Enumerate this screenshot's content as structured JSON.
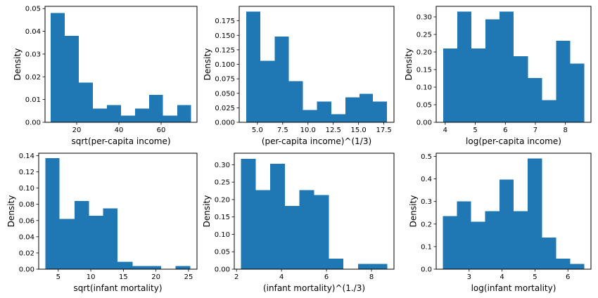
{
  "chart_data": [
    {
      "type": "histogram",
      "xlabel": "sqrt(per-capita income)",
      "ylabel": "Density",
      "color": "#1f77b4",
      "bin_edges": [
        7.7,
        14.4,
        21.0,
        27.7,
        34.3,
        41.0,
        47.6,
        54.3,
        60.9,
        67.6,
        74.2
      ],
      "values": [
        0.048,
        0.038,
        0.0175,
        0.006,
        0.0075,
        0.003,
        0.006,
        0.012,
        0.003,
        0.0075
      ],
      "xlim": [
        5.0,
        77.0
      ],
      "ylim": [
        0,
        0.051
      ],
      "xticks": [
        {
          "v": 20,
          "label": "20"
        },
        {
          "v": 40,
          "label": "40"
        },
        {
          "v": 60,
          "label": "60"
        }
      ],
      "yticks": [
        {
          "v": 0,
          "label": "0.00"
        },
        {
          "v": 0.01,
          "label": "0.01"
        },
        {
          "v": 0.02,
          "label": "0.02"
        },
        {
          "v": 0.03,
          "label": "0.03"
        },
        {
          "v": 0.04,
          "label": "0.04"
        },
        {
          "v": 0.05,
          "label": "0.05"
        }
      ]
    },
    {
      "type": "histogram",
      "xlabel": "(per-capita income)^(1/3)",
      "ylabel": "Density",
      "color": "#1f77b4",
      "bin_edges": [
        3.9,
        5.3,
        6.7,
        8.1,
        9.5,
        10.9,
        12.3,
        13.7,
        15.1,
        16.4,
        17.8
      ],
      "values": [
        0.191,
        0.106,
        0.148,
        0.071,
        0.021,
        0.036,
        0.014,
        0.043,
        0.049,
        0.036
      ],
      "xlim": [
        3.2,
        18.5
      ],
      "ylim": [
        0,
        0.2
      ],
      "xticks": [
        {
          "v": 5.0,
          "label": "5.0"
        },
        {
          "v": 7.5,
          "label": "7.5"
        },
        {
          "v": 10.0,
          "label": "10.0"
        },
        {
          "v": 12.5,
          "label": "12.5"
        },
        {
          "v": 15.0,
          "label": "15.0"
        },
        {
          "v": 17.5,
          "label": "17.5"
        }
      ],
      "yticks": [
        {
          "v": 0,
          "label": "0.000"
        },
        {
          "v": 0.025,
          "label": "0.025"
        },
        {
          "v": 0.05,
          "label": "0.050"
        },
        {
          "v": 0.075,
          "label": "0.075"
        },
        {
          "v": 0.1,
          "label": "0.100"
        },
        {
          "v": 0.125,
          "label": "0.125"
        },
        {
          "v": 0.15,
          "label": "0.150"
        },
        {
          "v": 0.175,
          "label": "0.175"
        }
      ]
    },
    {
      "type": "histogram",
      "xlabel": "log(per-capita income)",
      "ylabel": "Density",
      "color": "#1f77b4",
      "bin_edges": [
        3.93,
        4.4,
        4.87,
        5.34,
        5.81,
        6.28,
        6.75,
        7.22,
        7.69,
        8.16,
        8.63
      ],
      "values": [
        0.21,
        0.315,
        0.21,
        0.293,
        0.315,
        0.188,
        0.126,
        0.063,
        0.232,
        0.167
      ],
      "xlim": [
        3.7,
        8.85
      ],
      "ylim": [
        0,
        0.33
      ],
      "xticks": [
        {
          "v": 4,
          "label": "4"
        },
        {
          "v": 5,
          "label": "5"
        },
        {
          "v": 6,
          "label": "6"
        },
        {
          "v": 7,
          "label": "7"
        },
        {
          "v": 8,
          "label": "8"
        }
      ],
      "yticks": [
        {
          "v": 0,
          "label": "0.00"
        },
        {
          "v": 0.05,
          "label": "0.05"
        },
        {
          "v": 0.1,
          "label": "0.10"
        },
        {
          "v": 0.15,
          "label": "0.15"
        },
        {
          "v": 0.2,
          "label": "0.20"
        },
        {
          "v": 0.25,
          "label": "0.25"
        },
        {
          "v": 0.3,
          "label": "0.30"
        }
      ]
    },
    {
      "type": "histogram",
      "xlabel": "sqrt(infant mortality)",
      "ylabel": "Density",
      "color": "#1f77b4",
      "bin_edges": [
        3.0,
        5.2,
        7.5,
        9.7,
        11.9,
        14.1,
        16.4,
        18.6,
        20.8,
        23.0,
        25.3
      ],
      "values": [
        0.137,
        0.062,
        0.084,
        0.066,
        0.075,
        0.009,
        0.004,
        0.004,
        0.0,
        0.004
      ],
      "xlim": [
        2.0,
        26.3
      ],
      "ylim": [
        0,
        0.143
      ],
      "xticks": [
        {
          "v": 5,
          "label": "5"
        },
        {
          "v": 10,
          "label": "10"
        },
        {
          "v": 15,
          "label": "15"
        },
        {
          "v": 20,
          "label": "20"
        },
        {
          "v": 25,
          "label": "25"
        }
      ],
      "yticks": [
        {
          "v": 0,
          "label": "0.00"
        },
        {
          "v": 0.02,
          "label": "0.02"
        },
        {
          "v": 0.04,
          "label": "0.04"
        },
        {
          "v": 0.06,
          "label": "0.06"
        },
        {
          "v": 0.08,
          "label": "0.08"
        },
        {
          "v": 0.1,
          "label": "0.10"
        },
        {
          "v": 0.12,
          "label": "0.12"
        },
        {
          "v": 0.14,
          "label": "0.14"
        }
      ]
    },
    {
      "type": "histogram",
      "xlabel": "(infant mortality)^(1./3)",
      "ylabel": "Density",
      "color": "#1f77b4",
      "bin_edges": [
        2.2,
        2.85,
        3.5,
        4.15,
        4.8,
        5.45,
        6.1,
        6.75,
        7.4,
        8.05,
        8.7
      ],
      "values": [
        0.317,
        0.227,
        0.303,
        0.182,
        0.227,
        0.213,
        0.03,
        0.0,
        0.015,
        0.015
      ],
      "xlim": [
        1.9,
        9.0
      ],
      "ylim": [
        0,
        0.333
      ],
      "xticks": [
        {
          "v": 2,
          "label": "2"
        },
        {
          "v": 4,
          "label": "4"
        },
        {
          "v": 6,
          "label": "6"
        },
        {
          "v": 8,
          "label": "8"
        }
      ],
      "yticks": [
        {
          "v": 0,
          "label": "0.00"
        },
        {
          "v": 0.05,
          "label": "0.05"
        },
        {
          "v": 0.1,
          "label": "0.10"
        },
        {
          "v": 0.15,
          "label": "0.15"
        },
        {
          "v": 0.2,
          "label": "0.20"
        },
        {
          "v": 0.25,
          "label": "0.25"
        },
        {
          "v": 0.3,
          "label": "0.30"
        }
      ]
    },
    {
      "type": "histogram",
      "xlabel": "log(infant mortality)",
      "ylabel": "Density",
      "color": "#1f77b4",
      "bin_edges": [
        2.2,
        2.63,
        3.06,
        3.49,
        3.92,
        4.35,
        4.78,
        5.21,
        5.64,
        6.07,
        6.5
      ],
      "values": [
        0.235,
        0.3,
        0.21,
        0.257,
        0.397,
        0.257,
        0.49,
        0.14,
        0.047,
        0.023
      ],
      "xlim": [
        2.0,
        6.7
      ],
      "ylim": [
        0,
        0.514
      ],
      "xticks": [
        {
          "v": 3,
          "label": "3"
        },
        {
          "v": 4,
          "label": "4"
        },
        {
          "v": 5,
          "label": "5"
        },
        {
          "v": 6,
          "label": "6"
        }
      ],
      "yticks": [
        {
          "v": 0,
          "label": "0.0"
        },
        {
          "v": 0.1,
          "label": "0.1"
        },
        {
          "v": 0.2,
          "label": "0.2"
        },
        {
          "v": 0.3,
          "label": "0.3"
        },
        {
          "v": 0.4,
          "label": "0.4"
        },
        {
          "v": 0.5,
          "label": "0.5"
        }
      ]
    }
  ]
}
